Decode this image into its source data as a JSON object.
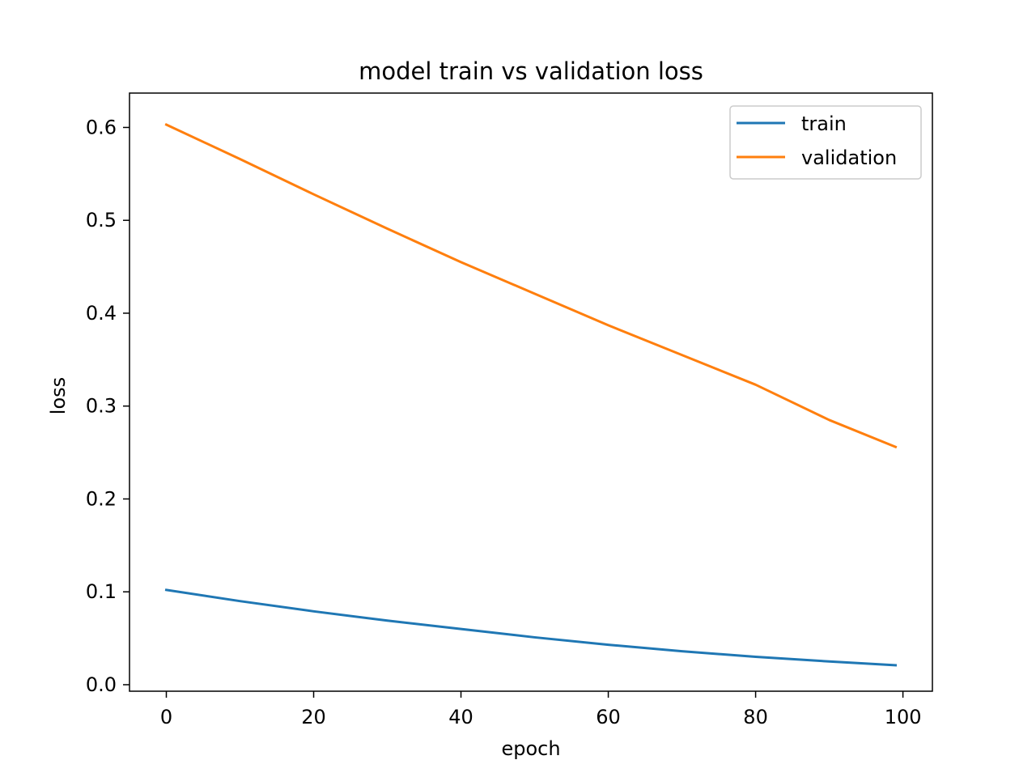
{
  "chart_data": {
    "type": "line",
    "title": "model train vs validation loss",
    "xlabel": "epoch",
    "ylabel": "loss",
    "xlim": [
      -5,
      104
    ],
    "ylim": [
      -0.007,
      0.637
    ],
    "xticks": [
      0,
      20,
      40,
      60,
      80,
      100
    ],
    "xtick_labels": [
      "0",
      "20",
      "40",
      "60",
      "80",
      "100"
    ],
    "yticks": [
      0.0,
      0.1,
      0.2,
      0.3,
      0.4,
      0.5,
      0.6
    ],
    "ytick_labels": [
      "0.0",
      "0.1",
      "0.2",
      "0.3",
      "0.4",
      "0.5",
      "0.6"
    ],
    "grid": false,
    "legend": {
      "position": "top-right",
      "entries": [
        "train",
        "validation"
      ]
    },
    "series": [
      {
        "name": "train",
        "color": "#1f77b4",
        "x": [
          0,
          10,
          20,
          30,
          40,
          50,
          60,
          70,
          80,
          90,
          99
        ],
        "y": [
          0.102,
          0.09,
          0.079,
          0.069,
          0.06,
          0.051,
          0.043,
          0.036,
          0.03,
          0.025,
          0.021
        ]
      },
      {
        "name": "validation",
        "color": "#ff7f0e",
        "x": [
          0,
          10,
          20,
          30,
          40,
          50,
          60,
          70,
          80,
          90,
          99
        ],
        "y": [
          0.603,
          0.566,
          0.528,
          0.491,
          0.455,
          0.421,
          0.387,
          0.355,
          0.323,
          0.285,
          0.256
        ]
      }
    ]
  }
}
